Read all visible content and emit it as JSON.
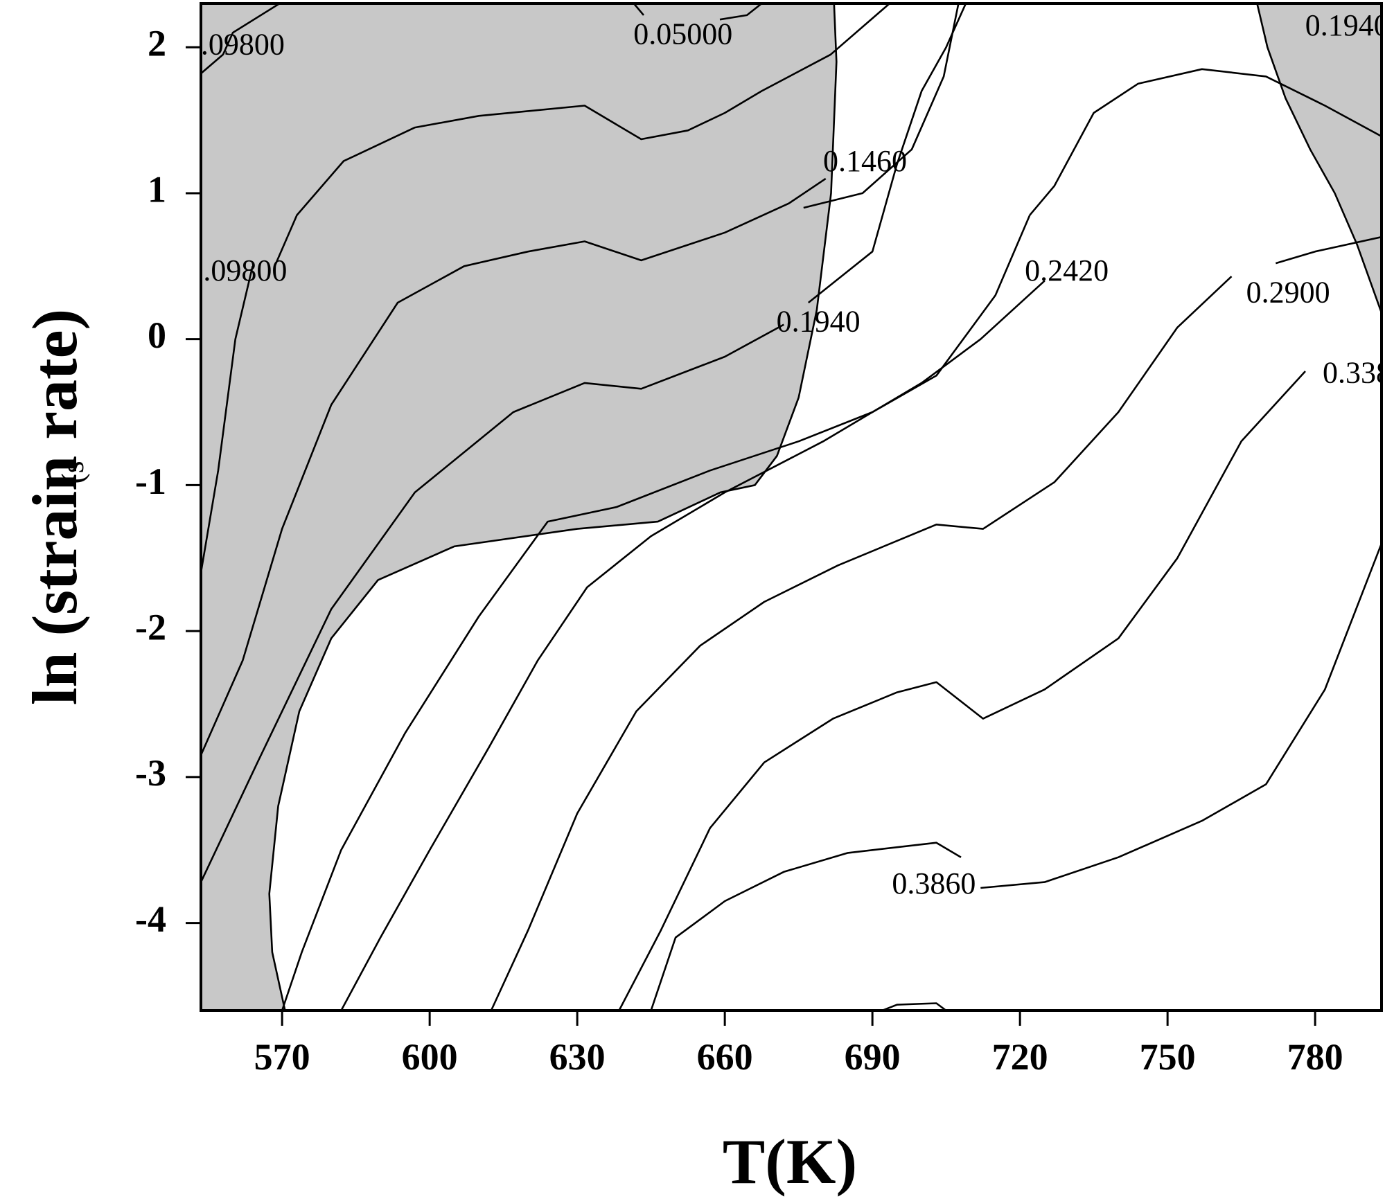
{
  "chart_data": {
    "type": "contour",
    "xlabel": "T(K)",
    "ylabel": "ln (strain rate)",
    "ylabel_suffix": "(s",
    "xlim": [
      553.5,
      793.5
    ],
    "ylim": [
      -4.6,
      2.3
    ],
    "x_ticks": [
      570,
      600,
      630,
      660,
      690,
      720,
      750,
      780
    ],
    "y_ticks": [
      2,
      1,
      0,
      -1,
      -2,
      -3,
      -4
    ],
    "grid": false,
    "colors": {
      "instability_region": "#c8c8c8",
      "lines": "#000000",
      "background": "#ffffff"
    },
    "instability_regions": [
      {
        "name": "left-region",
        "points": [
          [
            553.5,
            2.3
          ],
          [
            682.2,
            2.3
          ],
          [
            682.7,
            1.9
          ],
          [
            681.6,
            1.0
          ],
          [
            678.7,
            0.2
          ],
          [
            675.0,
            -0.4
          ],
          [
            670.6,
            -0.8
          ],
          [
            666.1,
            -1.0
          ],
          [
            659.1,
            -1.05
          ],
          [
            646.4,
            -1.25
          ],
          [
            630.0,
            -1.3
          ],
          [
            605.0,
            -1.42
          ],
          [
            589.5,
            -1.65
          ],
          [
            580.0,
            -2.05
          ],
          [
            573.5,
            -2.55
          ],
          [
            569.2,
            -3.2
          ],
          [
            567.4,
            -3.8
          ],
          [
            568.0,
            -4.2
          ],
          [
            570.6,
            -4.6
          ],
          [
            553.5,
            -4.6
          ]
        ]
      },
      {
        "name": "right-region",
        "points": [
          [
            768.2,
            2.3
          ],
          [
            793.5,
            2.3
          ],
          [
            793.5,
            0.18
          ],
          [
            788.5,
            0.65
          ],
          [
            784.0,
            1.0
          ],
          [
            779.0,
            1.3
          ],
          [
            774.0,
            1.65
          ],
          [
            770.3,
            2.0
          ]
        ]
      }
    ],
    "contours": [
      {
        "level": "0.09800",
        "points": [
          [
            553.5,
            1.82
          ],
          [
            558.0,
            1.95
          ],
          [
            560.0,
            2.1
          ],
          [
            569.5,
            2.3
          ]
        ]
      },
      {
        "level": "0.05000",
        "points": [
          [
            641.5,
            2.3
          ],
          [
            643.5,
            2.22
          ]
        ]
      },
      {
        "level": "0.05000",
        "points": [
          [
            659.0,
            2.19
          ],
          [
            664.5,
            2.22
          ],
          [
            667.5,
            2.3
          ]
        ]
      },
      {
        "level": "0.09800",
        "points": [
          [
            553.5,
            -1.6
          ],
          [
            557.0,
            -0.9
          ],
          [
            560.5,
            0.0
          ],
          [
            564.0,
            0.5
          ]
        ]
      },
      {
        "level": "",
        "points": [
          [
            568.5,
            0.5
          ],
          [
            573.0,
            0.85
          ],
          [
            582.5,
            1.22
          ],
          [
            597.0,
            1.45
          ],
          [
            610.0,
            1.53
          ],
          [
            631.5,
            1.6
          ],
          [
            643.0,
            1.37
          ],
          [
            652.5,
            1.43
          ],
          [
            660.0,
            1.55
          ],
          [
            667.5,
            1.7
          ],
          [
            681.5,
            1.95
          ],
          [
            693.5,
            2.3
          ]
        ]
      },
      {
        "level": "0.1460",
        "points": [
          [
            553.5,
            -2.85
          ],
          [
            562.0,
            -2.2
          ],
          [
            570.0,
            -1.3
          ],
          [
            580.0,
            -0.45
          ],
          [
            593.5,
            0.25
          ],
          [
            607.0,
            0.5
          ],
          [
            620.0,
            0.6
          ],
          [
            631.5,
            0.67
          ],
          [
            643.0,
            0.54
          ],
          [
            660.0,
            0.73
          ],
          [
            673.0,
            0.93
          ],
          [
            680.5,
            1.1
          ]
        ]
      },
      {
        "level": "0.1460",
        "points": [
          [
            677.0,
            0.25
          ],
          [
            690.0,
            0.6
          ],
          [
            695.0,
            1.2
          ],
          [
            700.0,
            1.7
          ],
          [
            705.0,
            2.0
          ],
          [
            709.0,
            2.3
          ]
        ]
      },
      {
        "level": "",
        "points": [
          [
            707.5,
            2.3
          ],
          [
            704.5,
            1.8
          ],
          [
            698.0,
            1.3
          ],
          [
            688.0,
            1.0
          ],
          [
            676.0,
            0.9
          ]
        ]
      },
      {
        "level": "0.1940",
        "points": [
          [
            553.5,
            -3.72
          ],
          [
            565.0,
            -2.9
          ],
          [
            580.0,
            -1.85
          ],
          [
            597.0,
            -1.05
          ],
          [
            617.0,
            -0.5
          ],
          [
            631.5,
            -0.3
          ],
          [
            643.0,
            -0.34
          ],
          [
            660.0,
            -0.12
          ],
          [
            672.0,
            0.1
          ]
        ]
      },
      {
        "level": "0.1940",
        "points": [
          [
            570.0,
            -4.6
          ],
          [
            574.0,
            -4.2
          ],
          [
            582.0,
            -3.5
          ],
          [
            595.0,
            -2.7
          ],
          [
            610.0,
            -1.9
          ],
          [
            624.0,
            -1.25
          ],
          [
            638.0,
            -1.15
          ],
          [
            657.0,
            -0.9
          ],
          [
            675.0,
            -0.7
          ],
          [
            690.0,
            -0.5
          ],
          [
            703.0,
            -0.25
          ],
          [
            715.0,
            0.3
          ],
          [
            722.0,
            0.85
          ]
        ]
      },
      {
        "level": "0.1940",
        "points": [
          [
            793.5,
            1.39
          ],
          [
            782.0,
            1.6
          ],
          [
            770.0,
            1.8
          ],
          [
            757.0,
            1.85
          ],
          [
            744.0,
            1.75
          ],
          [
            735.0,
            1.55
          ],
          [
            727.0,
            1.05
          ],
          [
            722.0,
            0.85
          ]
        ]
      },
      {
        "level": "0.2420",
        "points": [
          [
            582.0,
            -4.6
          ],
          [
            590.0,
            -4.1
          ],
          [
            600.0,
            -3.5
          ],
          [
            612.0,
            -2.8
          ],
          [
            622.0,
            -2.2
          ],
          [
            632.0,
            -1.7
          ],
          [
            645.0,
            -1.35
          ],
          [
            660.0,
            -1.05
          ],
          [
            680.0,
            -0.7
          ],
          [
            700.0,
            -0.3
          ],
          [
            712.0,
            0.0
          ],
          [
            725.0,
            0.4
          ]
        ]
      },
      {
        "level": "0.2900",
        "points": [
          [
            612.5,
            -4.6
          ],
          [
            620.0,
            -4.05
          ],
          [
            630.0,
            -3.25
          ],
          [
            642.0,
            -2.55
          ],
          [
            655.0,
            -2.1
          ],
          [
            668.0,
            -1.8
          ],
          [
            683.0,
            -1.55
          ],
          [
            703.0,
            -1.27
          ],
          [
            712.5,
            -1.3
          ],
          [
            727.0,
            -0.98
          ],
          [
            740.0,
            -0.5
          ],
          [
            752.0,
            0.08
          ],
          [
            763.0,
            0.43
          ]
        ]
      },
      {
        "level": "0.2900",
        "points": [
          [
            772.0,
            0.52
          ],
          [
            780.0,
            0.6
          ],
          [
            793.5,
            0.7
          ]
        ]
      },
      {
        "level": "0.3380",
        "points": [
          [
            638.5,
            -4.6
          ],
          [
            647.0,
            -4.05
          ],
          [
            657.0,
            -3.35
          ],
          [
            668.0,
            -2.9
          ],
          [
            682.0,
            -2.6
          ],
          [
            695.0,
            -2.42
          ],
          [
            703.0,
            -2.35
          ],
          [
            712.5,
            -2.6
          ],
          [
            725.0,
            -2.4
          ],
          [
            740.0,
            -2.05
          ],
          [
            752.0,
            -1.5
          ],
          [
            765.0,
            -0.7
          ],
          [
            778.0,
            -0.22
          ]
        ]
      },
      {
        "level": "0.3860",
        "points": [
          [
            645.0,
            -4.6
          ],
          [
            650.0,
            -4.1
          ],
          [
            660.0,
            -3.85
          ],
          [
            672.0,
            -3.65
          ],
          [
            685.0,
            -3.52
          ],
          [
            703.0,
            -3.45
          ],
          [
            708.0,
            -3.55
          ]
        ]
      },
      {
        "level": "0.3860",
        "points": [
          [
            712.0,
            -3.76
          ],
          [
            725.0,
            -3.72
          ],
          [
            740.0,
            -3.55
          ],
          [
            757.0,
            -3.3
          ],
          [
            770.0,
            -3.05
          ],
          [
            782.0,
            -2.4
          ],
          [
            793.5,
            -1.4
          ]
        ]
      },
      {
        "level": "",
        "points": [
          [
            692.0,
            -4.6
          ],
          [
            695.0,
            -4.56
          ],
          [
            703.0,
            -4.55
          ],
          [
            705.0,
            -4.6
          ]
        ]
      }
    ],
    "labels": [
      {
        "text": ".09800",
        "x": 562.0,
        "y": 2.0
      },
      {
        "text": "0.05000",
        "x": 651.5,
        "y": 2.07
      },
      {
        "text": "0.1940",
        "x": 786.5,
        "y": 2.13
      },
      {
        "text": "0.1460",
        "x": 688.5,
        "y": 1.2
      },
      {
        "text": ".09800",
        "x": 562.5,
        "y": 0.45
      },
      {
        "text": "0.2420",
        "x": 729.5,
        "y": 0.45
      },
      {
        "text": "0.2900",
        "x": 774.5,
        "y": 0.3
      },
      {
        "text": "0.1940",
        "x": 679.0,
        "y": 0.1
      },
      {
        "text": "0.338",
        "x": 788.5,
        "y": -0.25
      },
      {
        "text": "0.3860",
        "x": 702.5,
        "y": -3.75
      }
    ]
  }
}
